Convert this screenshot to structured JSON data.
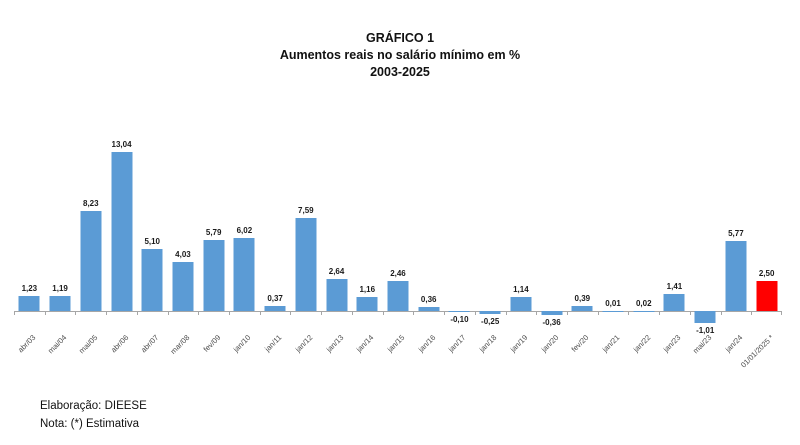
{
  "title": {
    "line1": "GRÁFICO 1",
    "line2": "Aumentos reais no salário mínimo em %",
    "line3": "2003-2025"
  },
  "footer": {
    "line1": "Elaboração: DIEESE",
    "line2": "Nota: (*) Estimativa"
  },
  "chart_data": {
    "type": "bar",
    "title": "GRÁFICO 1",
    "subtitle": "Aumentos reais no salário mínimo em %",
    "period": "2003-2025",
    "categories": [
      "abr/03",
      "mai/04",
      "mai/05",
      "abr/06",
      "abr/07",
      "mar/08",
      "fev/09",
      "jan/10",
      "jan/11",
      "jan/12",
      "jan/13",
      "jan/14",
      "jan/15",
      "jan/16",
      "jan/17",
      "jan/18",
      "jan/19",
      "jan/20",
      "fev/20",
      "jan/21",
      "jan/22",
      "jan/23",
      "mai/23",
      "jan/24",
      "01/01/2025 *"
    ],
    "values": [
      1.23,
      1.19,
      8.23,
      13.04,
      5.1,
      4.03,
      5.79,
      6.02,
      0.37,
      7.59,
      2.64,
      1.16,
      2.46,
      0.36,
      -0.1,
      -0.25,
      1.14,
      -0.36,
      0.39,
      0.01,
      0.02,
      1.41,
      -1.01,
      5.77,
      2.5
    ],
    "value_labels": [
      "1,23",
      "1,19",
      "8,23",
      "13,04",
      "5,10",
      "4,03",
      "5,79",
      "6,02",
      "0,37",
      "7,59",
      "2,64",
      "1,16",
      "2,46",
      "0,36",
      "-0,10",
      "-0,25",
      "1,14",
      "-0,36",
      "0,39",
      "0,01",
      "0,02",
      "1,41",
      "-1,01",
      "5,77",
      "2,50"
    ],
    "bar_color": "#5B9BD5",
    "highlight_index": 24,
    "highlight_color": "#FF0000",
    "axis_color": "#A6A6A6",
    "ylim": [
      -1.5,
      14
    ],
    "grid": false,
    "legend": false,
    "note": "(*) Estimativa"
  }
}
